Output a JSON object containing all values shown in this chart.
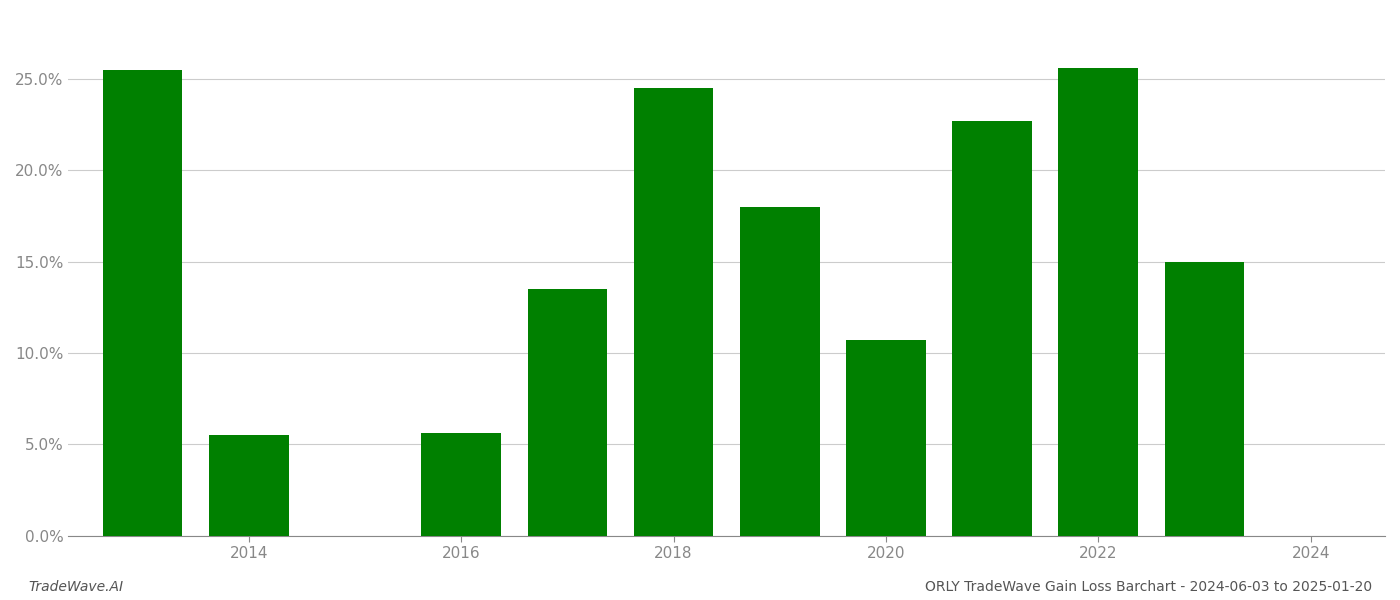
{
  "years": [
    2013,
    2014,
    2016,
    2017,
    2018,
    2019,
    2020,
    2021,
    2022,
    2023
  ],
  "values": [
    0.255,
    0.055,
    0.056,
    0.135,
    0.245,
    0.18,
    0.107,
    0.227,
    0.256,
    0.15
  ],
  "bar_color": "#008000",
  "background_color": "#ffffff",
  "ytick_labels": [
    "0.0%",
    "5.0%",
    "10.0%",
    "15.0%",
    "20.0%",
    "25.0%"
  ],
  "ytick_values": [
    0.0,
    0.05,
    0.1,
    0.15,
    0.2,
    0.25
  ],
  "ylim": [
    0,
    0.285
  ],
  "xlim_left": 2012.3,
  "xlim_right": 2024.7,
  "xtick_values": [
    2014,
    2016,
    2018,
    2020,
    2022,
    2024
  ],
  "grid_color": "#cccccc",
  "grid_linewidth": 0.8,
  "bar_width": 0.75,
  "figsize": [
    14.0,
    6.0
  ],
  "dpi": 100,
  "footer_left": "TradeWave.AI",
  "footer_right": "ORLY TradeWave Gain Loss Barchart - 2024-06-03 to 2025-01-20",
  "footer_fontsize": 10,
  "tick_fontsize": 11,
  "tick_color": "#888888",
  "spine_color": "#888888"
}
